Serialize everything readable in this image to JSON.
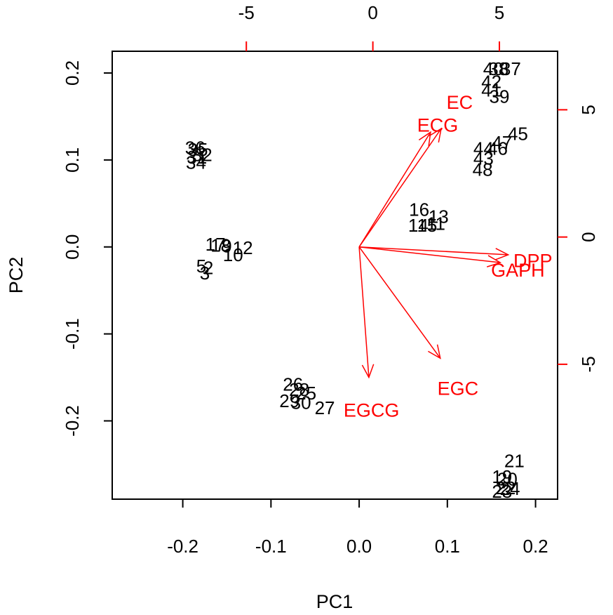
{
  "chart_data": {
    "type": "scatter",
    "subtype": "biplot",
    "title": "",
    "xlabel": "PC1",
    "ylabel": "PC2",
    "xlim": [
      -0.28,
      0.225
    ],
    "ylim": [
      -0.29,
      0.225
    ],
    "grid": false,
    "legend": "none",
    "colors": {
      "points": "#000000",
      "loadings": "#ff0000",
      "frame": "#000000"
    },
    "x_ticks": [
      -0.2,
      -0.1,
      0.0,
      0.1,
      0.2
    ],
    "x_tick_labels": [
      "-0.2",
      "-0.1",
      "0.0",
      "0.1",
      "0.2"
    ],
    "y_ticks": [
      -0.2,
      -0.1,
      0.0,
      0.1,
      0.2
    ],
    "y_tick_labels": [
      "-0.2",
      "-0.1",
      "0.0",
      "0.1",
      "0.2"
    ],
    "secondary_axes": {
      "top_ticks": [
        -5,
        0,
        5
      ],
      "top_tick_labels": [
        "-5",
        "0",
        "5"
      ],
      "right_ticks": [
        -5,
        0,
        5
      ],
      "right_tick_labels": [
        "-5",
        "0",
        "5"
      ],
      "lim": [
        -10.3,
        7.3
      ]
    },
    "points": [
      {
        "label": "36",
        "x": -0.186,
        "y": 0.114
      },
      {
        "label": "35",
        "x": -0.183,
        "y": 0.112
      },
      {
        "label": "32",
        "x": -0.178,
        "y": 0.106
      },
      {
        "label": "31",
        "x": -0.184,
        "y": 0.103
      },
      {
        "label": "34",
        "x": -0.185,
        "y": 0.097
      },
      {
        "label": "17",
        "x": -0.163,
        "y": 0.003
      },
      {
        "label": "18",
        "x": -0.157,
        "y": 0.002
      },
      {
        "label": "9",
        "x": -0.15,
        "y": 0.001
      },
      {
        "label": "12",
        "x": -0.132,
        "y": -0.001
      },
      {
        "label": "10",
        "x": -0.143,
        "y": -0.009
      },
      {
        "label": "5",
        "x": -0.179,
        "y": -0.022
      },
      {
        "label": "2",
        "x": -0.171,
        "y": -0.024
      },
      {
        "label": "3",
        "x": -0.175,
        "y": -0.03
      },
      {
        "label": "26",
        "x": -0.075,
        "y": -0.158
      },
      {
        "label": "28",
        "x": -0.068,
        "y": -0.164
      },
      {
        "label": "25",
        "x": -0.06,
        "y": -0.168
      },
      {
        "label": "29",
        "x": -0.079,
        "y": -0.177
      },
      {
        "label": "30",
        "x": -0.066,
        "y": -0.179
      },
      {
        "label": "27",
        "x": -0.039,
        "y": -0.185
      },
      {
        "label": "16",
        "x": 0.068,
        "y": 0.043
      },
      {
        "label": "13",
        "x": 0.09,
        "y": 0.035
      },
      {
        "label": "14",
        "x": 0.067,
        "y": 0.025
      },
      {
        "label": "15",
        "x": 0.077,
        "y": 0.025
      },
      {
        "label": "11",
        "x": 0.087,
        "y": 0.027
      },
      {
        "label": "40",
        "x": 0.152,
        "y": 0.205
      },
      {
        "label": "38",
        "x": 0.158,
        "y": 0.205
      },
      {
        "label": "37",
        "x": 0.172,
        "y": 0.205
      },
      {
        "label": "42",
        "x": 0.15,
        "y": 0.19
      },
      {
        "label": "41",
        "x": 0.15,
        "y": 0.18
      },
      {
        "label": "39",
        "x": 0.159,
        "y": 0.173
      },
      {
        "label": "45",
        "x": 0.18,
        "y": 0.13
      },
      {
        "label": "44",
        "x": 0.141,
        "y": 0.113
      },
      {
        "label": "46",
        "x": 0.157,
        "y": 0.113
      },
      {
        "label": "47",
        "x": 0.162,
        "y": 0.12
      },
      {
        "label": "43",
        "x": 0.141,
        "y": 0.102
      },
      {
        "label": "48",
        "x": 0.14,
        "y": 0.089
      },
      {
        "label": "21",
        "x": 0.176,
        "y": -0.246
      },
      {
        "label": "19",
        "x": 0.162,
        "y": -0.264
      },
      {
        "label": "20",
        "x": 0.168,
        "y": -0.267
      },
      {
        "label": "22",
        "x": 0.166,
        "y": -0.277
      },
      {
        "label": "24",
        "x": 0.171,
        "y": -0.278
      },
      {
        "label": "23",
        "x": 0.162,
        "y": -0.281
      }
    ],
    "loadings": [
      {
        "label": "EC",
        "x": 0.093,
        "y": 0.136,
        "label_x": 0.114,
        "label_y": 0.166
      },
      {
        "label": "ECG",
        "x": 0.081,
        "y": 0.132,
        "label_x": 0.089,
        "label_y": 0.14
      },
      {
        "label": "DPP",
        "x": 0.169,
        "y": -0.009,
        "label_x": 0.197,
        "label_y": -0.016
      },
      {
        "label": "GAPH",
        "x": 0.16,
        "y": -0.018,
        "label_x": 0.18,
        "label_y": -0.027
      },
      {
        "label": "EGC",
        "x": 0.092,
        "y": -0.128,
        "label_x": 0.112,
        "label_y": -0.163
      },
      {
        "label": "EGCG",
        "x": 0.011,
        "y": -0.15,
        "label_x": 0.014,
        "label_y": -0.188
      }
    ]
  }
}
